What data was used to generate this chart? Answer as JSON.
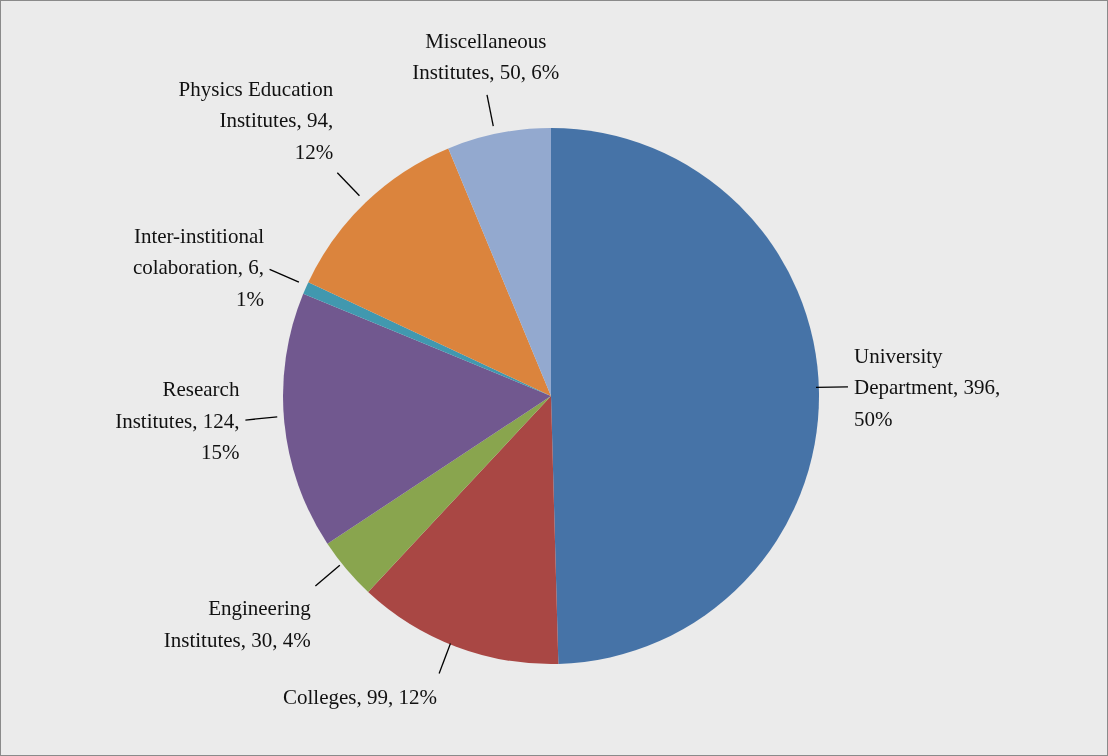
{
  "chart_data": {
    "type": "pie",
    "categories": [
      "University Department",
      "Colleges",
      "Engineering Institutes",
      "Research Institutes",
      "Inter-institional colaboration",
      "Physics Education Institutes",
      "Miscellaneous Institutes"
    ],
    "values": [
      396,
      99,
      30,
      124,
      6,
      94,
      50
    ],
    "value_labels": [
      "396, 50%",
      "99, 12%",
      "30, 4%",
      "124, 15%",
      "6, 1%",
      "94, 12%",
      "50, 6%"
    ],
    "colors": [
      "#4673a7",
      "#a94744",
      "#89a54e",
      "#71588f",
      "#4198af",
      "#db843d",
      "#93a9cf"
    ]
  }
}
